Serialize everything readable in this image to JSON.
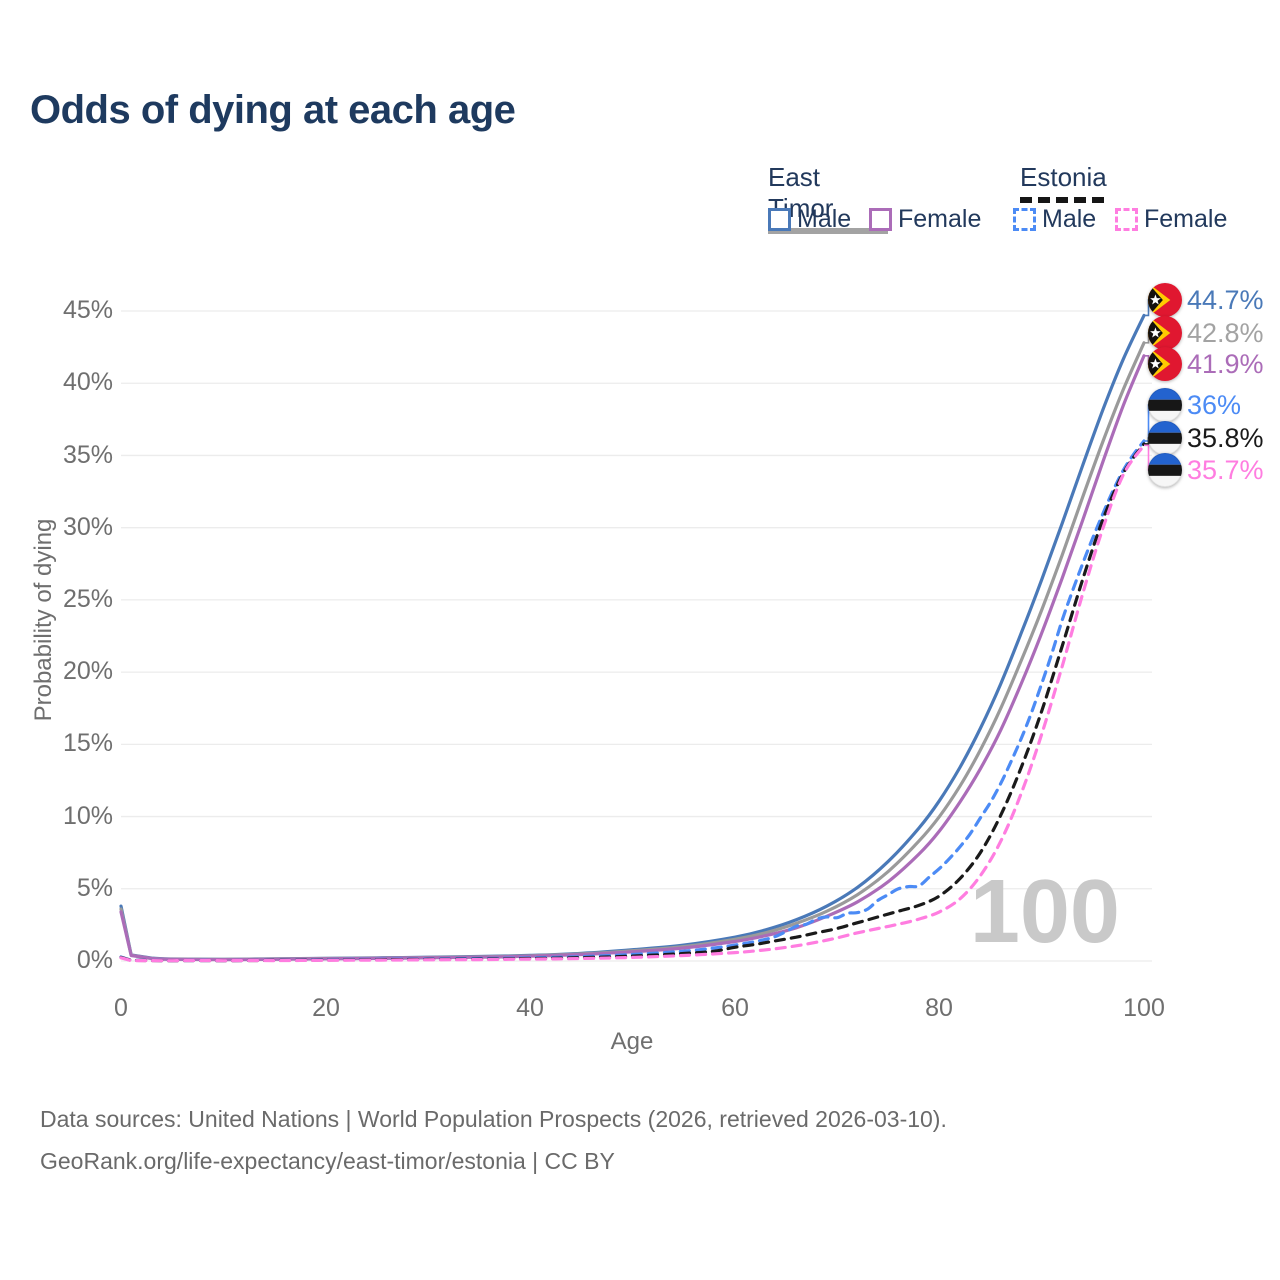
{
  "title": "Odds of dying at each age",
  "watermark": "100",
  "legend": {
    "groups": [
      {
        "label": "East Timor",
        "style": "solid",
        "color": "#a3a3a3"
      },
      {
        "label": "Estonia",
        "style": "dashed",
        "color": "#161616"
      }
    ],
    "items": [
      {
        "label": "Male",
        "color": "#4a79b8",
        "style": "solid"
      },
      {
        "label": "Female",
        "color": "#ab6cb8",
        "style": "solid"
      },
      {
        "label": "Male",
        "color": "#4c8bf5",
        "style": "dashed"
      },
      {
        "label": "Female",
        "color": "#ff7de0",
        "style": "dashed"
      }
    ]
  },
  "axes": {
    "y_title": "Probability of dying",
    "x_title": "Age",
    "y_ticks": [
      "45%",
      "40%",
      "35%",
      "30%",
      "25%",
      "20%",
      "15%",
      "10%",
      "5%",
      "0%"
    ],
    "x_ticks": [
      "0",
      "20",
      "40",
      "60",
      "80",
      "100"
    ]
  },
  "end_labels": [
    {
      "value": "44.7%",
      "flag": "east-timor",
      "color": "#4a79b8"
    },
    {
      "value": "42.8%",
      "flag": "east-timor",
      "color": "#a3a3a3"
    },
    {
      "value": "41.9%",
      "flag": "east-timor",
      "color": "#ab6cb8"
    },
    {
      "value": "36%",
      "flag": "estonia",
      "color": "#4c8bf5"
    },
    {
      "value": "35.8%",
      "flag": "estonia",
      "color": "#1a1a1a"
    },
    {
      "value": "35.7%",
      "flag": "estonia",
      "color": "#ff7de0"
    }
  ],
  "footer": {
    "line1": "Data sources: United Nations | World Population Prospects (2026, retrieved 2026-03-10).",
    "line2": "GeoRank.org/life-expectancy/east-timor/estonia | CC BY"
  },
  "chart_data": {
    "type": "line",
    "title": "Odds of dying at each age",
    "xlabel": "Age",
    "ylabel": "Probability of dying",
    "unit": "percent",
    "xlim": [
      0,
      100
    ],
    "ylim_pct": [
      0,
      45
    ],
    "x_ticks": [
      0,
      20,
      40,
      60,
      80,
      100
    ],
    "y_ticks_pct": [
      0,
      5,
      10,
      15,
      20,
      25,
      30,
      35,
      40,
      45
    ],
    "grid": true,
    "legend_position": "top-right",
    "series": [
      {
        "name": "East Timor Male",
        "country": "East Timor",
        "sex": "male",
        "color": "#4a79b8",
        "dash": "solid",
        "end_value_pct": 44.7,
        "end_label": "44.7%",
        "points": [
          [
            0,
            3.8
          ],
          [
            1,
            0.42
          ],
          [
            3,
            0.2
          ],
          [
            5,
            0.14
          ],
          [
            10,
            0.12
          ],
          [
            15,
            0.15
          ],
          [
            20,
            0.19
          ],
          [
            25,
            0.22
          ],
          [
            30,
            0.26
          ],
          [
            35,
            0.31
          ],
          [
            40,
            0.39
          ],
          [
            45,
            0.53
          ],
          [
            50,
            0.78
          ],
          [
            55,
            1.1
          ],
          [
            60,
            1.65
          ],
          [
            63,
            2.15
          ],
          [
            66,
            2.85
          ],
          [
            69,
            3.8
          ],
          [
            72,
            5.1
          ],
          [
            75,
            6.9
          ],
          [
            78,
            9.2
          ],
          [
            80,
            11.1
          ],
          [
            82,
            13.4
          ],
          [
            84,
            16.1
          ],
          [
            86,
            19.2
          ],
          [
            88,
            22.7
          ],
          [
            90,
            26.4
          ],
          [
            92,
            30.3
          ],
          [
            94,
            34.3
          ],
          [
            96,
            38.2
          ],
          [
            98,
            41.7
          ],
          [
            100,
            44.7
          ]
        ]
      },
      {
        "name": "East Timor Both sexes",
        "country": "East Timor",
        "sex": "both",
        "color": "#9a9a9a",
        "dash": "solid",
        "end_value_pct": 42.8,
        "end_label": "42.8%",
        "points": [
          [
            0,
            3.6
          ],
          [
            1,
            0.4
          ],
          [
            3,
            0.18
          ],
          [
            5,
            0.13
          ],
          [
            10,
            0.11
          ],
          [
            15,
            0.14
          ],
          [
            20,
            0.17
          ],
          [
            25,
            0.2
          ],
          [
            30,
            0.24
          ],
          [
            35,
            0.29
          ],
          [
            40,
            0.36
          ],
          [
            45,
            0.49
          ],
          [
            50,
            0.71
          ],
          [
            55,
            1.0
          ],
          [
            60,
            1.5
          ],
          [
            63,
            1.95
          ],
          [
            66,
            2.6
          ],
          [
            69,
            3.45
          ],
          [
            72,
            4.6
          ],
          [
            75,
            6.2
          ],
          [
            78,
            8.3
          ],
          [
            80,
            10.0
          ],
          [
            82,
            12.1
          ],
          [
            84,
            14.6
          ],
          [
            86,
            17.5
          ],
          [
            88,
            20.8
          ],
          [
            90,
            24.3
          ],
          [
            92,
            28.1
          ],
          [
            94,
            32.1
          ],
          [
            96,
            36.0
          ],
          [
            98,
            39.6
          ],
          [
            100,
            42.8
          ]
        ]
      },
      {
        "name": "East Timor Female",
        "country": "East Timor",
        "sex": "female",
        "color": "#ab6cb8",
        "dash": "solid",
        "end_value_pct": 41.9,
        "end_label": "41.9%",
        "points": [
          [
            0,
            3.4
          ],
          [
            1,
            0.38
          ],
          [
            3,
            0.17
          ],
          [
            5,
            0.12
          ],
          [
            10,
            0.1
          ],
          [
            15,
            0.12
          ],
          [
            20,
            0.15
          ],
          [
            25,
            0.18
          ],
          [
            30,
            0.22
          ],
          [
            35,
            0.26
          ],
          [
            40,
            0.33
          ],
          [
            45,
            0.45
          ],
          [
            50,
            0.64
          ],
          [
            55,
            0.9
          ],
          [
            60,
            1.35
          ],
          [
            63,
            1.75
          ],
          [
            66,
            2.3
          ],
          [
            69,
            3.1
          ],
          [
            72,
            4.1
          ],
          [
            75,
            5.5
          ],
          [
            78,
            7.4
          ],
          [
            80,
            9.0
          ],
          [
            82,
            11.0
          ],
          [
            84,
            13.3
          ],
          [
            86,
            16.0
          ],
          [
            88,
            19.2
          ],
          [
            90,
            22.7
          ],
          [
            92,
            26.5
          ],
          [
            94,
            30.5
          ],
          [
            96,
            34.6
          ],
          [
            98,
            38.5
          ],
          [
            100,
            41.9
          ]
        ]
      },
      {
        "name": "Estonia Male",
        "country": "Estonia",
        "sex": "male",
        "color": "#4c8bf5",
        "dash": "dashed",
        "end_value_pct": 36.0,
        "end_label": "36%",
        "points": [
          [
            0,
            0.28
          ],
          [
            1,
            0.05
          ],
          [
            5,
            0.03
          ],
          [
            10,
            0.03
          ],
          [
            15,
            0.05
          ],
          [
            20,
            0.1
          ],
          [
            25,
            0.12
          ],
          [
            30,
            0.14
          ],
          [
            35,
            0.17
          ],
          [
            40,
            0.22
          ],
          [
            45,
            0.3
          ],
          [
            50,
            0.45
          ],
          [
            55,
            0.68
          ],
          [
            58,
            0.9
          ],
          [
            60,
            1.1
          ],
          [
            62,
            1.35
          ],
          [
            64,
            1.7
          ],
          [
            66,
            2.4
          ],
          [
            67,
            2.55
          ],
          [
            68,
            2.9
          ],
          [
            69,
            3.05
          ],
          [
            70,
            3.0
          ],
          [
            71,
            3.3
          ],
          [
            72,
            3.35
          ],
          [
            73,
            3.6
          ],
          [
            74,
            4.2
          ],
          [
            75,
            4.6
          ],
          [
            76,
            5.0
          ],
          [
            77,
            5.15
          ],
          [
            78,
            5.2
          ],
          [
            79,
            5.8
          ],
          [
            80,
            6.4
          ],
          [
            81,
            7.1
          ],
          [
            82,
            7.9
          ],
          [
            83,
            8.8
          ],
          [
            84,
            9.9
          ],
          [
            85,
            11.0
          ],
          [
            86,
            12.3
          ],
          [
            87,
            13.8
          ],
          [
            88,
            15.4
          ],
          [
            89,
            17.2
          ],
          [
            90,
            19.2
          ],
          [
            91,
            21.3
          ],
          [
            92,
            23.6
          ],
          [
            93,
            25.6
          ],
          [
            94,
            27.5
          ],
          [
            95,
            29.3
          ],
          [
            96,
            31.0
          ],
          [
            97,
            32.6
          ],
          [
            98,
            34.0
          ],
          [
            99,
            35.1
          ],
          [
            100,
            36.0
          ]
        ]
      },
      {
        "name": "Estonia Both sexes",
        "country": "Estonia",
        "sex": "both",
        "color": "#1a1a1a",
        "dash": "dashed",
        "end_value_pct": 35.8,
        "end_label": "35.8%",
        "points": [
          [
            0,
            0.25
          ],
          [
            1,
            0.04
          ],
          [
            5,
            0.02
          ],
          [
            10,
            0.02
          ],
          [
            15,
            0.04
          ],
          [
            20,
            0.07
          ],
          [
            25,
            0.09
          ],
          [
            30,
            0.11
          ],
          [
            35,
            0.13
          ],
          [
            40,
            0.17
          ],
          [
            45,
            0.23
          ],
          [
            50,
            0.34
          ],
          [
            55,
            0.52
          ],
          [
            58,
            0.68
          ],
          [
            60,
            0.95
          ],
          [
            62,
            1.15
          ],
          [
            64,
            1.4
          ],
          [
            66,
            1.65
          ],
          [
            68,
            1.95
          ],
          [
            70,
            2.25
          ],
          [
            72,
            2.65
          ],
          [
            74,
            3.05
          ],
          [
            76,
            3.45
          ],
          [
            78,
            3.85
          ],
          [
            80,
            4.5
          ],
          [
            82,
            5.7
          ],
          [
            84,
            7.5
          ],
          [
            86,
            10.1
          ],
          [
            88,
            13.4
          ],
          [
            90,
            17.3
          ],
          [
            92,
            21.8
          ],
          [
            94,
            26.4
          ],
          [
            96,
            30.6
          ],
          [
            98,
            33.8
          ],
          [
            100,
            35.8
          ]
        ]
      },
      {
        "name": "Estonia Female",
        "country": "Estonia",
        "sex": "female",
        "color": "#ff7de0",
        "dash": "dashed",
        "end_value_pct": 35.7,
        "end_label": "35.7%",
        "points": [
          [
            0,
            0.22
          ],
          [
            1,
            0.03
          ],
          [
            5,
            0.02
          ],
          [
            10,
            0.02
          ],
          [
            15,
            0.03
          ],
          [
            20,
            0.05
          ],
          [
            25,
            0.06
          ],
          [
            30,
            0.08
          ],
          [
            35,
            0.1
          ],
          [
            40,
            0.13
          ],
          [
            45,
            0.17
          ],
          [
            50,
            0.25
          ],
          [
            55,
            0.38
          ],
          [
            60,
            0.58
          ],
          [
            62,
            0.7
          ],
          [
            64,
            0.85
          ],
          [
            66,
            1.05
          ],
          [
            68,
            1.3
          ],
          [
            70,
            1.6
          ],
          [
            72,
            1.95
          ],
          [
            74,
            2.25
          ],
          [
            76,
            2.55
          ],
          [
            78,
            2.9
          ],
          [
            80,
            3.4
          ],
          [
            82,
            4.3
          ],
          [
            84,
            5.9
          ],
          [
            86,
            8.3
          ],
          [
            88,
            11.6
          ],
          [
            90,
            15.7
          ],
          [
            92,
            20.4
          ],
          [
            94,
            25.4
          ],
          [
            96,
            30.0
          ],
          [
            98,
            33.7
          ],
          [
            100,
            35.7
          ]
        ]
      }
    ]
  }
}
